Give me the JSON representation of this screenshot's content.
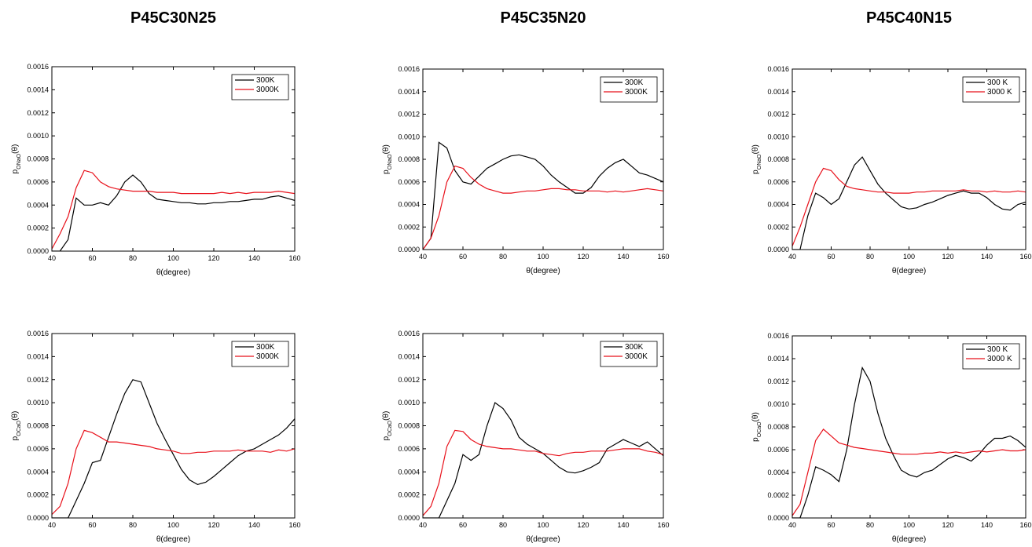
{
  "chart_data": [
    {
      "type": "line",
      "title": "P45C30N25",
      "xlabel": "θ(degree)",
      "ylabel": [
        "p",
        "ONaO",
        "(θ)"
      ],
      "legend": "upper right",
      "x": [
        40,
        44,
        48,
        52,
        56,
        60,
        64,
        68,
        72,
        76,
        80,
        84,
        88,
        92,
        96,
        100,
        104,
        108,
        112,
        116,
        120,
        124,
        128,
        132,
        136,
        140,
        144,
        148,
        152,
        156,
        160
      ],
      "series": [
        {
          "name": "300K",
          "color": "#000000",
          "values": [
            0,
            0,
            0.0001,
            0.00046,
            0.0004,
            0.0004,
            0.00042,
            0.0004,
            0.00048,
            0.0006,
            0.00066,
            0.0006,
            0.0005,
            0.00045,
            0.00044,
            0.00043,
            0.00042,
            0.00042,
            0.00041,
            0.00041,
            0.00042,
            0.00042,
            0.00043,
            0.00043,
            0.00044,
            0.00045,
            0.00045,
            0.00047,
            0.00048,
            0.00046,
            0.00044
          ]
        },
        {
          "name": "3000K",
          "color": "#e8101a",
          "values": [
            2e-05,
            0.00015,
            0.0003,
            0.00055,
            0.0007,
            0.00068,
            0.0006,
            0.00056,
            0.00054,
            0.00053,
            0.00052,
            0.00052,
            0.00052,
            0.00051,
            0.00051,
            0.00051,
            0.0005,
            0.0005,
            0.0005,
            0.0005,
            0.0005,
            0.00051,
            0.0005,
            0.00051,
            0.0005,
            0.00051,
            0.00051,
            0.00051,
            0.00052,
            0.00051,
            0.0005
          ]
        }
      ],
      "xlim": [
        40,
        160
      ],
      "xticks": [
        40,
        60,
        80,
        100,
        120,
        140,
        160
      ],
      "ylim": [
        0,
        0.0016
      ],
      "yticks": [
        {
          "value": 0,
          "label": "0.0000"
        },
        {
          "value": 0.0002,
          "label": "0.0002"
        },
        {
          "value": 0.0004,
          "label": "0.0004"
        },
        {
          "value": 0.0006,
          "label": "0.0006"
        },
        {
          "value": 0.0008,
          "label": "0.0008"
        },
        {
          "value": 0.001,
          "label": "0.0010"
        },
        {
          "value": 0.0012,
          "label": "0.0012"
        },
        {
          "value": 0.0014,
          "label": "0.0014"
        },
        {
          "value": 0.0016,
          "label": "0.0016"
        }
      ]
    },
    {
      "type": "line",
      "title": "P45C35N20",
      "xlabel": "θ(degree)",
      "ylabel": [
        "p",
        "ONaO",
        "(θ)"
      ],
      "legend": "upper right",
      "x": [
        40,
        44,
        48,
        52,
        56,
        60,
        64,
        68,
        72,
        76,
        80,
        84,
        88,
        92,
        96,
        100,
        104,
        108,
        112,
        116,
        120,
        124,
        128,
        132,
        136,
        140,
        144,
        148,
        152,
        156,
        160
      ],
      "series": [
        {
          "name": "300K",
          "color": "#000000",
          "values": [
            0,
            0.0001,
            0.00095,
            0.0009,
            0.0007,
            0.0006,
            0.00058,
            0.00065,
            0.00072,
            0.00076,
            0.0008,
            0.00083,
            0.00084,
            0.00082,
            0.0008,
            0.00074,
            0.00066,
            0.0006,
            0.00055,
            0.0005,
            0.0005,
            0.00055,
            0.00065,
            0.00072,
            0.00077,
            0.0008,
            0.00074,
            0.00068,
            0.00066,
            0.00063,
            0.0006
          ]
        },
        {
          "name": "3000K",
          "color": "#e8101a",
          "values": [
            0,
            0.0001,
            0.0003,
            0.0006,
            0.00074,
            0.00072,
            0.00064,
            0.00058,
            0.00054,
            0.00052,
            0.0005,
            0.0005,
            0.00051,
            0.00052,
            0.00052,
            0.00053,
            0.00054,
            0.00054,
            0.00053,
            0.00053,
            0.00052,
            0.00052,
            0.00052,
            0.00051,
            0.00052,
            0.00051,
            0.00052,
            0.00053,
            0.00054,
            0.00053,
            0.00052
          ]
        }
      ],
      "xlim": [
        40,
        160
      ],
      "xticks": [
        40,
        60,
        80,
        100,
        120,
        140,
        160
      ],
      "ylim": [
        0,
        0.0016
      ],
      "yticks": [
        {
          "value": 0,
          "label": "0.0000"
        },
        {
          "value": 0.0002,
          "label": "0.0002"
        },
        {
          "value": 0.0004,
          "label": "0.0004"
        },
        {
          "value": 0.0006,
          "label": "0.0006"
        },
        {
          "value": 0.0008,
          "label": "0.0008"
        },
        {
          "value": 0.001,
          "label": "0.0010"
        },
        {
          "value": 0.0012,
          "label": "0.0012"
        },
        {
          "value": 0.0014,
          "label": "0.0014"
        },
        {
          "value": 0.0016,
          "label": "0.0016"
        }
      ]
    },
    {
      "type": "line",
      "title": "P45C40N15",
      "xlabel": "θ(degree)",
      "ylabel": [
        "p",
        "ONaO",
        "(θ)"
      ],
      "legend": "upper right",
      "x": [
        40,
        44,
        48,
        52,
        56,
        60,
        64,
        68,
        72,
        76,
        80,
        84,
        88,
        92,
        96,
        100,
        104,
        108,
        112,
        116,
        120,
        124,
        128,
        132,
        136,
        140,
        144,
        148,
        152,
        156,
        160
      ],
      "series": [
        {
          "name": "300 K",
          "color": "#000000",
          "values": [
            0,
            0,
            0.0003,
            0.0005,
            0.00046,
            0.0004,
            0.00045,
            0.0006,
            0.00075,
            0.00082,
            0.0007,
            0.00058,
            0.0005,
            0.00044,
            0.00038,
            0.00036,
            0.00037,
            0.0004,
            0.00042,
            0.00045,
            0.00048,
            0.0005,
            0.00052,
            0.0005,
            0.0005,
            0.00046,
            0.0004,
            0.00036,
            0.00035,
            0.0004,
            0.00042
          ]
        },
        {
          "name": "3000 K",
          "color": "#e8101a",
          "values": [
            3e-05,
            0.0002,
            0.0004,
            0.0006,
            0.00072,
            0.0007,
            0.00062,
            0.00056,
            0.00054,
            0.00053,
            0.00052,
            0.00051,
            0.00051,
            0.0005,
            0.0005,
            0.0005,
            0.00051,
            0.00051,
            0.00052,
            0.00052,
            0.00052,
            0.00052,
            0.00053,
            0.00052,
            0.00052,
            0.00051,
            0.00052,
            0.00051,
            0.00051,
            0.00052,
            0.00051
          ]
        }
      ],
      "xlim": [
        40,
        160
      ],
      "xticks": [
        40,
        60,
        80,
        100,
        120,
        140,
        160
      ],
      "ylim": [
        0,
        0.0016
      ],
      "yticks": [
        {
          "value": 0,
          "label": "0.0000"
        },
        {
          "value": 0.0002,
          "label": "0.0002"
        },
        {
          "value": 0.0004,
          "label": "0.0004"
        },
        {
          "value": 0.0006,
          "label": "0.0006"
        },
        {
          "value": 0.0008,
          "label": "0.0008"
        },
        {
          "value": 0.001,
          "label": "0.0010"
        },
        {
          "value": 0.0012,
          "label": "0.0012"
        },
        {
          "value": 0.0014,
          "label": "0.0014"
        },
        {
          "value": 0.0016,
          "label": "0.0016"
        }
      ]
    },
    {
      "type": "line",
      "xlabel": "θ(degree)",
      "ylabel": [
        "p",
        "OCaO",
        "(θ)"
      ],
      "legend": "upper right",
      "x": [
        40,
        44,
        48,
        52,
        56,
        60,
        64,
        68,
        72,
        76,
        80,
        84,
        88,
        92,
        96,
        100,
        104,
        108,
        112,
        116,
        120,
        124,
        128,
        132,
        136,
        140,
        144,
        148,
        152,
        156,
        160
      ],
      "series": [
        {
          "name": "300K",
          "color": "#000000",
          "values": [
            0,
            0,
            0,
            0.00015,
            0.0003,
            0.00048,
            0.0005,
            0.0007,
            0.0009,
            0.00108,
            0.0012,
            0.00118,
            0.001,
            0.00082,
            0.00068,
            0.00055,
            0.00042,
            0.00033,
            0.00029,
            0.00031,
            0.00036,
            0.00042,
            0.00048,
            0.00054,
            0.00058,
            0.0006,
            0.00064,
            0.00068,
            0.00072,
            0.00078,
            0.00086
          ]
        },
        {
          "name": "3000K",
          "color": "#e8101a",
          "values": [
            3e-05,
            0.0001,
            0.0003,
            0.0006,
            0.00076,
            0.00074,
            0.0007,
            0.00066,
            0.00066,
            0.00065,
            0.00064,
            0.00063,
            0.00062,
            0.0006,
            0.00059,
            0.00058,
            0.00056,
            0.00056,
            0.00057,
            0.00057,
            0.00058,
            0.00058,
            0.00058,
            0.00059,
            0.00058,
            0.00058,
            0.00058,
            0.00057,
            0.00059,
            0.00058,
            0.0006
          ]
        }
      ],
      "xlim": [
        40,
        160
      ],
      "xticks": [
        40,
        60,
        80,
        100,
        120,
        140,
        160
      ],
      "ylim": [
        0,
        0.0016
      ],
      "yticks": [
        {
          "value": 0,
          "label": "0.0000"
        },
        {
          "value": 0.0002,
          "label": "0.0002"
        },
        {
          "value": 0.0004,
          "label": "0.0004"
        },
        {
          "value": 0.0006,
          "label": "0.0006"
        },
        {
          "value": 0.0008,
          "label": "0.0008"
        },
        {
          "value": 0.001,
          "label": "0.0010"
        },
        {
          "value": 0.0012,
          "label": "0.0012"
        },
        {
          "value": 0.0014,
          "label": "0.0014"
        },
        {
          "value": 0.0016,
          "label": "0.0016"
        }
      ]
    },
    {
      "type": "line",
      "xlabel": "θ(degree)",
      "ylabel": [
        "p",
        "OCaO",
        "(θ)"
      ],
      "legend": "upper right",
      "x": [
        40,
        44,
        48,
        52,
        56,
        60,
        64,
        68,
        72,
        76,
        80,
        84,
        88,
        92,
        96,
        100,
        104,
        108,
        112,
        116,
        120,
        124,
        128,
        132,
        136,
        140,
        144,
        148,
        152,
        156,
        160
      ],
      "series": [
        {
          "name": "300K",
          "color": "#000000",
          "values": [
            0,
            0,
            0,
            0.00015,
            0.0003,
            0.00055,
            0.0005,
            0.00055,
            0.0008,
            0.001,
            0.00095,
            0.00085,
            0.0007,
            0.00064,
            0.0006,
            0.00056,
            0.0005,
            0.00044,
            0.0004,
            0.00039,
            0.00041,
            0.00044,
            0.00048,
            0.0006,
            0.00064,
            0.00068,
            0.00065,
            0.00062,
            0.00066,
            0.0006,
            0.00054
          ]
        },
        {
          "name": "3000K",
          "color": "#e8101a",
          "values": [
            2e-05,
            0.0001,
            0.0003,
            0.00062,
            0.00076,
            0.00075,
            0.00068,
            0.00064,
            0.00062,
            0.00061,
            0.0006,
            0.0006,
            0.00059,
            0.00058,
            0.00058,
            0.00056,
            0.00055,
            0.00054,
            0.00056,
            0.00057,
            0.00057,
            0.00058,
            0.00058,
            0.00058,
            0.00059,
            0.0006,
            0.0006,
            0.0006,
            0.00058,
            0.00057,
            0.00055
          ]
        }
      ],
      "xlim": [
        40,
        160
      ],
      "xticks": [
        40,
        60,
        80,
        100,
        120,
        140,
        160
      ],
      "ylim": [
        0,
        0.0016
      ],
      "yticks": [
        {
          "value": 0,
          "label": "0.0000"
        },
        {
          "value": 0.0002,
          "label": "0.0002"
        },
        {
          "value": 0.0004,
          "label": "0.0004"
        },
        {
          "value": 0.0006,
          "label": "0.0006"
        },
        {
          "value": 0.0008,
          "label": "0.0008"
        },
        {
          "value": 0.001,
          "label": "0.0010"
        },
        {
          "value": 0.0012,
          "label": "0.0012"
        },
        {
          "value": 0.0014,
          "label": "0.0014"
        },
        {
          "value": 0.0016,
          "label": "0.0016"
        }
      ]
    },
    {
      "type": "line",
      "xlabel": "θ(degree)",
      "ylabel": [
        "p",
        "OCaO",
        "(θ)"
      ],
      "legend": "upper right",
      "x": [
        40,
        44,
        48,
        52,
        56,
        60,
        64,
        68,
        72,
        76,
        80,
        84,
        88,
        92,
        96,
        100,
        104,
        108,
        112,
        116,
        120,
        124,
        128,
        132,
        136,
        140,
        144,
        148,
        152,
        156,
        160
      ],
      "series": [
        {
          "name": "300 K",
          "color": "#000000",
          "values": [
            0,
            0,
            0.0002,
            0.00045,
            0.00042,
            0.00038,
            0.00032,
            0.0006,
            0.001,
            0.00132,
            0.0012,
            0.00092,
            0.0007,
            0.00055,
            0.00042,
            0.00038,
            0.00036,
            0.0004,
            0.00042,
            0.00047,
            0.00052,
            0.00055,
            0.00053,
            0.0005,
            0.00056,
            0.00064,
            0.0007,
            0.0007,
            0.00072,
            0.00068,
            0.00062
          ]
        },
        {
          "name": "3000 K",
          "color": "#e8101a",
          "values": [
            2e-05,
            0.00012,
            0.0004,
            0.00068,
            0.00078,
            0.00072,
            0.00066,
            0.00064,
            0.00062,
            0.00061,
            0.0006,
            0.00059,
            0.00058,
            0.00057,
            0.00056,
            0.00056,
            0.00056,
            0.00057,
            0.00057,
            0.00058,
            0.00057,
            0.00058,
            0.00057,
            0.00058,
            0.00059,
            0.00058,
            0.00059,
            0.0006,
            0.00059,
            0.00059,
            0.0006
          ]
        }
      ],
      "xlim": [
        40,
        160
      ],
      "xticks": [
        40,
        60,
        80,
        100,
        120,
        140,
        160
      ],
      "ylim": [
        0,
        0.0016
      ],
      "yticks": [
        {
          "value": 0,
          "label": "0.0000"
        },
        {
          "value": 0.0002,
          "label": "0.0002"
        },
        {
          "value": 0.0004,
          "label": "0.0004"
        },
        {
          "value": 0.0006,
          "label": "0.0006"
        },
        {
          "value": 0.0008,
          "label": "0.0008"
        },
        {
          "value": 0.001,
          "label": "0.0010"
        },
        {
          "value": 0.0012,
          "label": "0.0012"
        },
        {
          "value": 0.0014,
          "label": "0.0014"
        },
        {
          "value": 0.0016,
          "label": "0.0016"
        }
      ]
    }
  ]
}
